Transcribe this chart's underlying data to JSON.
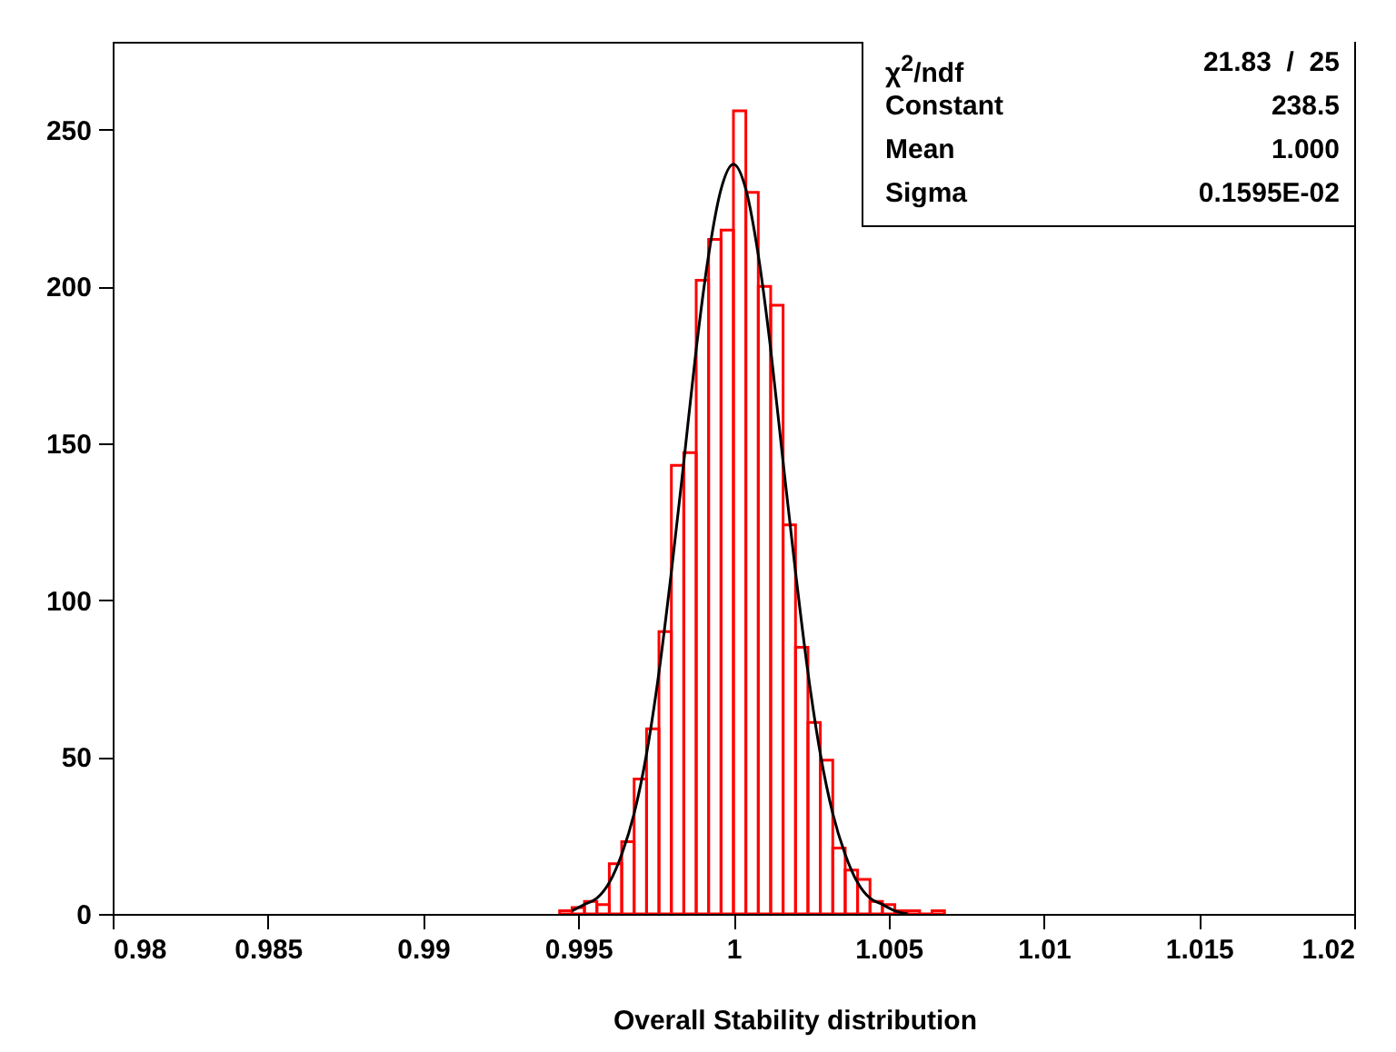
{
  "chart_data": {
    "type": "histogram",
    "xlabel": "Overall Stability distribution",
    "bins": [
      0.9944,
      0.9948,
      0.9952,
      0.9956,
      0.996,
      0.9964,
      0.9968,
      0.9972,
      0.9976,
      0.998,
      0.9984,
      0.9988,
      0.9992,
      0.9996,
      1,
      1.0004,
      1.0008,
      1.0012,
      1.0016,
      1.002,
      1.0024,
      1.0028,
      1.0032,
      1.0036,
      1.004,
      1.0044,
      1.0048,
      1.0052,
      1.0056,
      1.006,
      1.0064,
      1.0068
    ],
    "values": [
      1,
      2,
      4,
      3,
      16,
      23,
      43,
      59,
      90,
      143,
      147,
      202,
      215,
      218,
      256,
      230,
      200,
      194,
      124,
      85,
      61,
      49,
      21,
      14,
      11,
      4,
      3,
      1,
      1,
      0,
      1
    ],
    "color": "#ff0000",
    "series": [
      {
        "type": "line",
        "color": "#000000",
        "x": [
          0.9948,
          0.9952,
          0.9956,
          0.996,
          0.9964,
          0.9968,
          0.9972,
          0.9976,
          0.998,
          0.9984,
          0.9988,
          0.9992,
          0.9996,
          1,
          1.0004,
          1.0008,
          1.0012,
          1.0016,
          1.002,
          1.0024,
          1.0028,
          1.0032,
          1.0036,
          1.004,
          1.0044,
          1.0048,
          1.0052,
          1.0056
        ],
        "values": [
          1,
          3,
          5,
          10,
          19,
          32,
          51,
          77,
          109,
          144,
          180,
          210,
          231,
          239,
          231,
          210,
          180,
          144,
          109,
          77,
          51,
          32,
          19,
          10,
          5,
          3,
          1,
          0
        ]
      }
    ],
    "xlim": [
      0.98,
      1.02
    ],
    "xticks": [
      0.98,
      0.985,
      0.99,
      0.995,
      1,
      1.005,
      1.01,
      1.015,
      1.02
    ],
    "ylim": [
      0,
      278
    ],
    "yticks": [
      0,
      50,
      100,
      150,
      200,
      250
    ],
    "grid": false,
    "annotations": [
      "χ$^{2}$/ndf 21.83  /  25",
      "Constant 238.5",
      "Mean 1.000",
      "Sigma 0.1595E-02"
    ]
  }
}
